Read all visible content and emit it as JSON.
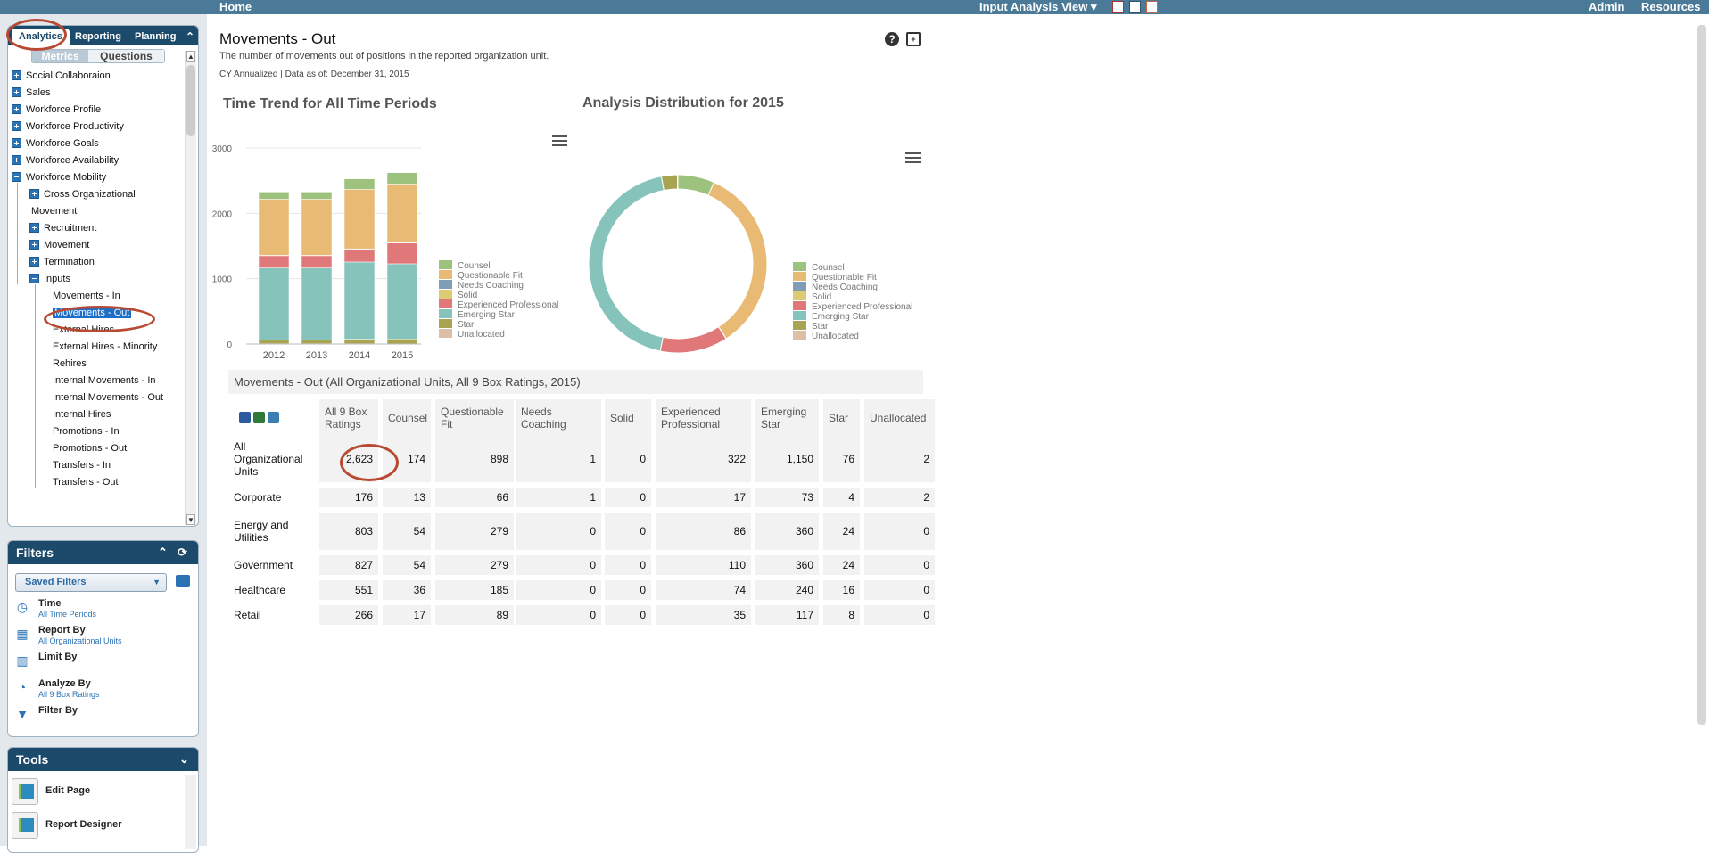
{
  "topbar": {
    "home": "Home",
    "view_menu": "Input Analysis View ▾",
    "admin": "Admin",
    "resources": "Resources"
  },
  "nav": {
    "tabs": [
      "Analytics",
      "Reporting",
      "Planning"
    ],
    "active_tab": "Analytics",
    "segment": {
      "metrics": "Metrics",
      "questions": "Questions",
      "active": "Metrics"
    },
    "tree": [
      {
        "label": "Social Collaboraion",
        "level": 0,
        "expanded": false
      },
      {
        "label": "Sales",
        "level": 0,
        "expanded": false
      },
      {
        "label": "Workforce Profile",
        "level": 0,
        "expanded": false
      },
      {
        "label": "Workforce Productivity",
        "level": 0,
        "expanded": false
      },
      {
        "label": "Workforce Goals",
        "level": 0,
        "expanded": false
      },
      {
        "label": "Workforce Availability",
        "level": 0,
        "expanded": false
      },
      {
        "label": "Workforce Mobility",
        "level": 0,
        "expanded": true
      },
      {
        "label": "Cross Organizational",
        "level": 1,
        "expanded": false
      },
      {
        "label": "Movement",
        "level": 1,
        "leaf": true
      },
      {
        "label": "Recruitment",
        "level": 1,
        "expanded": false
      },
      {
        "label": "Movement",
        "level": 1,
        "expanded": false
      },
      {
        "label": "Termination",
        "level": 1,
        "expanded": false
      },
      {
        "label": "Inputs",
        "level": 1,
        "expanded": true
      },
      {
        "label": "Movements - In",
        "level": 2,
        "leaf": true
      },
      {
        "label": "Movements - Out",
        "level": 2,
        "leaf": true,
        "selected": true
      },
      {
        "label": "External Hires",
        "level": 2,
        "leaf": true
      },
      {
        "label": "External Hires - Minority",
        "level": 2,
        "leaf": true
      },
      {
        "label": "Rehires",
        "level": 2,
        "leaf": true
      },
      {
        "label": "Internal Movements - In",
        "level": 2,
        "leaf": true
      },
      {
        "label": "Internal Movements - Out",
        "level": 2,
        "leaf": true
      },
      {
        "label": "Internal Hires",
        "level": 2,
        "leaf": true
      },
      {
        "label": "Promotions - In",
        "level": 2,
        "leaf": true
      },
      {
        "label": "Promotions - Out",
        "level": 2,
        "leaf": true
      },
      {
        "label": "Transfers - In",
        "level": 2,
        "leaf": true
      },
      {
        "label": "Transfers - Out",
        "level": 2,
        "leaf": true
      }
    ]
  },
  "filters": {
    "title": "Filters",
    "saved_filters": "Saved Filters",
    "items": [
      {
        "label": "Time",
        "sub": "All Time Periods",
        "icon": "clock-icon"
      },
      {
        "label": "Report By",
        "sub": "All Organizational Units",
        "icon": "org-chart-icon"
      },
      {
        "label": "Limit By",
        "sub": "",
        "icon": "hierarchy-icon"
      },
      {
        "label": "Analyze By",
        "sub": "All 9 Box Ratings",
        "icon": "pie-icon"
      },
      {
        "label": "Filter By",
        "sub": "",
        "icon": "funnel-icon"
      }
    ]
  },
  "tools": {
    "title": "Tools",
    "items": [
      "Edit Page",
      "Report Designer"
    ]
  },
  "page": {
    "title": "Movements - Out",
    "description": "The number of movements out of positions in the reported organization unit.",
    "meta": "CY Annualized | Data as of: December 31, 2015"
  },
  "colors": {
    "Counsel": "#9cc27d",
    "Questionable Fit": "#e8ba74",
    "Needs Coaching": "#7f9eb5",
    "Solid": "#ddcb73",
    "Experienced Professional": "#e07779",
    "Emerging Star": "#85c3bb",
    "Star": "#a9a452",
    "Unallocated": "#dcbfa6"
  },
  "chart_data": [
    {
      "type": "bar",
      "stacked": true,
      "title": "Time Trend for All Time Periods",
      "categories": [
        "2012",
        "2013",
        "2014",
        "2015"
      ],
      "ylim": [
        0,
        3000
      ],
      "yticks": [
        0,
        1000,
        2000,
        3000
      ],
      "series": [
        {
          "name": "Unallocated",
          "values": [
            5,
            5,
            5,
            2
          ]
        },
        {
          "name": "Star",
          "values": [
            60,
            60,
            70,
            76
          ]
        },
        {
          "name": "Emerging Star",
          "values": [
            1100,
            1100,
            1180,
            1150
          ]
        },
        {
          "name": "Experienced Professional",
          "values": [
            190,
            190,
            200,
            322
          ]
        },
        {
          "name": "Solid",
          "values": [
            0,
            0,
            0,
            0
          ]
        },
        {
          "name": "Needs Coaching",
          "values": [
            2,
            2,
            2,
            1
          ]
        },
        {
          "name": "Questionable Fit",
          "values": [
            860,
            860,
            910,
            898
          ]
        },
        {
          "name": "Counsel",
          "values": [
            110,
            110,
            160,
            174
          ]
        }
      ],
      "legend_position": "right"
    },
    {
      "type": "pie",
      "donut": true,
      "title": "Analysis Distribution for 2015",
      "labels": [
        "Counsel",
        "Questionable Fit",
        "Needs Coaching",
        "Solid",
        "Experienced Professional",
        "Emerging Star",
        "Star",
        "Unallocated"
      ],
      "values": [
        174,
        898,
        1,
        0,
        322,
        1150,
        76,
        2
      ],
      "legend_position": "right"
    }
  ],
  "grid": {
    "title": "Movements - Out (All Organizational Units, All 9 Box Ratings, 2015)",
    "columns": [
      "All 9 Box Ratings",
      "Counsel",
      "Questionable Fit",
      "Needs Coaching",
      "Solid",
      "Experienced Professional",
      "Emerging Star",
      "Star",
      "Unallocated"
    ],
    "rows": [
      {
        "label": "All Organizational Units",
        "values": [
          "2,623",
          "174",
          "898",
          "1",
          "0",
          "322",
          "1,150",
          "76",
          "2"
        ]
      },
      {
        "label": "Corporate",
        "values": [
          "176",
          "13",
          "66",
          "1",
          "0",
          "17",
          "73",
          "4",
          "2"
        ]
      },
      {
        "label": "Energy and Utilities",
        "values": [
          "803",
          "54",
          "279",
          "0",
          "0",
          "86",
          "360",
          "24",
          "0"
        ]
      },
      {
        "label": "Government",
        "values": [
          "827",
          "54",
          "279",
          "0",
          "0",
          "110",
          "360",
          "24",
          "0"
        ]
      },
      {
        "label": "Healthcare",
        "values": [
          "551",
          "36",
          "185",
          "0",
          "0",
          "74",
          "240",
          "16",
          "0"
        ]
      },
      {
        "label": "Retail",
        "values": [
          "266",
          "17",
          "89",
          "0",
          "0",
          "35",
          "117",
          "8",
          "0"
        ]
      }
    ]
  }
}
